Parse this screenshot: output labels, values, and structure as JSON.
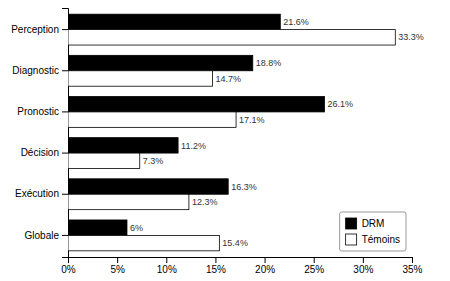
{
  "chart_data": {
    "type": "bar",
    "orientation": "horizontal",
    "categories": [
      "Perception",
      "Diagnostic",
      "Pronostic",
      "Décision",
      "Exécution",
      "Globale"
    ],
    "series": [
      {
        "name": "DRM",
        "color": "#000000",
        "values": [
          21.6,
          18.8,
          26.1,
          11.2,
          16.3,
          6.0
        ],
        "value_labels": [
          "21.6%",
          "18.8%",
          "26.1%",
          "11.2%",
          "16.3%",
          "6%"
        ]
      },
      {
        "name": "Témoins",
        "color": "#ffffff",
        "values": [
          33.3,
          14.7,
          17.1,
          7.3,
          12.3,
          15.4
        ],
        "value_labels": [
          "33.3%",
          "14.7%",
          "17.1%",
          "7.3%",
          "12.3%",
          "15.4%"
        ]
      }
    ],
    "xlim": [
      0,
      35
    ],
    "xticks": [
      {
        "value": 0,
        "label": "0%"
      },
      {
        "value": 5,
        "label": "5%"
      },
      {
        "value": 10,
        "label": "10%"
      },
      {
        "value": 15,
        "label": "15%"
      },
      {
        "value": 20,
        "label": "20%"
      },
      {
        "value": 25,
        "label": "25%"
      },
      {
        "value": 30,
        "label": "30%"
      },
      {
        "value": 35,
        "label": "35%"
      }
    ],
    "data_labels": true,
    "legend": "lower right"
  }
}
